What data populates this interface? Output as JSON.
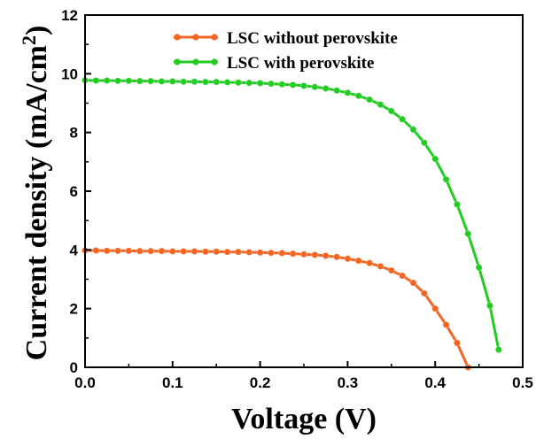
{
  "chart_data": {
    "type": "line",
    "title": "",
    "xlabel": "Voltage (V)",
    "ylabel": "Current density (mA/cm²)",
    "ylabel_parts": {
      "main": "Current density (mA/cm",
      "sup": "2",
      "end": ")"
    },
    "xlim": [
      0.0,
      0.5
    ],
    "ylim": [
      0,
      12
    ],
    "xticks": [
      "0.0",
      "0.1",
      "0.2",
      "0.3",
      "0.4",
      "0.5"
    ],
    "yticks": [
      "0",
      "2",
      "4",
      "6",
      "8",
      "10",
      "12"
    ],
    "grid": false,
    "legend_position": "top-center",
    "series": [
      {
        "name": "LSC without perovskite",
        "color": "#f26522",
        "x": [
          0.0,
          0.0125,
          0.025,
          0.0375,
          0.05,
          0.0625,
          0.075,
          0.0875,
          0.1,
          0.1125,
          0.125,
          0.1375,
          0.15,
          0.1625,
          0.175,
          0.1875,
          0.2,
          0.2125,
          0.225,
          0.2375,
          0.25,
          0.2625,
          0.275,
          0.2875,
          0.3,
          0.3125,
          0.325,
          0.3375,
          0.35,
          0.3625,
          0.375,
          0.3875,
          0.4,
          0.4125,
          0.425,
          0.4375
        ],
        "y": [
          3.98,
          3.98,
          3.97,
          3.97,
          3.97,
          3.96,
          3.96,
          3.96,
          3.95,
          3.95,
          3.95,
          3.94,
          3.94,
          3.93,
          3.93,
          3.92,
          3.91,
          3.9,
          3.89,
          3.87,
          3.85,
          3.83,
          3.8,
          3.76,
          3.7,
          3.63,
          3.55,
          3.44,
          3.3,
          3.12,
          2.88,
          2.52,
          2.0,
          1.45,
          0.83,
          0.0
        ]
      },
      {
        "name": "LSC with perovskite",
        "color": "#22cc22",
        "x": [
          0.0,
          0.0125,
          0.025,
          0.0375,
          0.05,
          0.0625,
          0.075,
          0.0875,
          0.1,
          0.1125,
          0.125,
          0.1375,
          0.15,
          0.1625,
          0.175,
          0.1875,
          0.2,
          0.2125,
          0.225,
          0.2375,
          0.25,
          0.2625,
          0.275,
          0.2875,
          0.3,
          0.3125,
          0.325,
          0.3375,
          0.35,
          0.3625,
          0.375,
          0.3875,
          0.4,
          0.4125,
          0.425,
          0.4375,
          0.45,
          0.4625,
          0.4725
        ],
        "y": [
          9.78,
          9.77,
          9.77,
          9.76,
          9.76,
          9.75,
          9.75,
          9.74,
          9.74,
          9.73,
          9.73,
          9.72,
          9.72,
          9.71,
          9.7,
          9.69,
          9.68,
          9.66,
          9.64,
          9.62,
          9.59,
          9.55,
          9.5,
          9.43,
          9.35,
          9.25,
          9.12,
          8.95,
          8.73,
          8.45,
          8.1,
          7.65,
          7.1,
          6.4,
          5.55,
          4.55,
          3.4,
          2.1,
          0.6
        ]
      }
    ]
  }
}
